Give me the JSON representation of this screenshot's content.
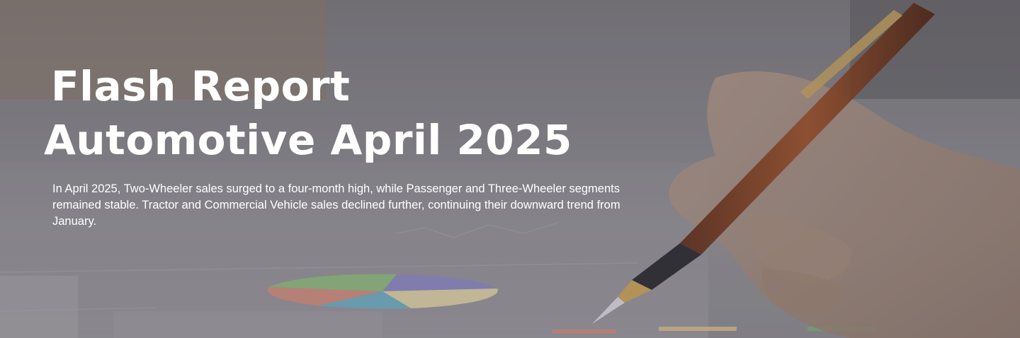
{
  "hero": {
    "title_line1": "Flash Report",
    "title_line2": "Automotive April 2025",
    "description": "In April 2025, Two-Wheeler sales surged to a four-month high, while Passenger and Three-Wheeler segments remained stable. Tractor and Commercial Vehicle sales declined further, continuing their downward trend from January."
  },
  "colors": {
    "overlay": "#6f6d73",
    "text": "#ffffff",
    "pen_body": "#8a3a1e",
    "pen_trim": "#c9a25a",
    "pie_slices": [
      "#8fbf7a",
      "#8b86c8",
      "#6ab0c8",
      "#d98a7a",
      "#e8d9a8"
    ]
  },
  "background_image": {
    "icon": "hand-writing-with-fountain-pen-over-charts"
  }
}
